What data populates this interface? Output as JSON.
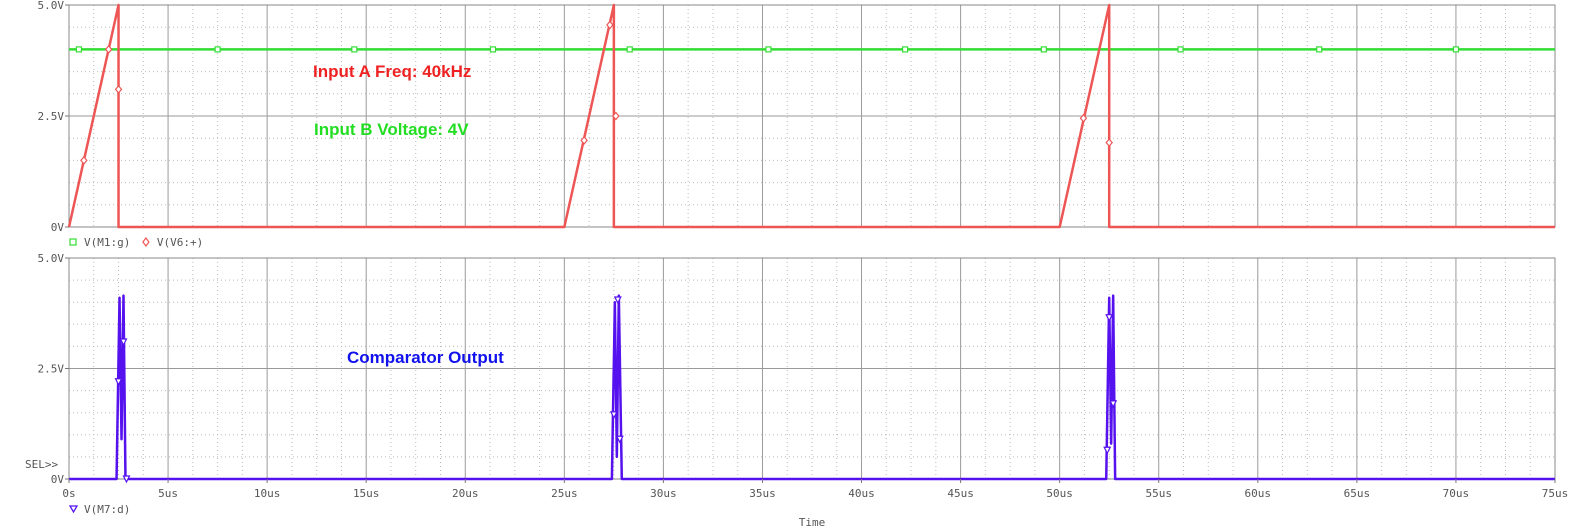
{
  "chart_data": [
    {
      "type": "line",
      "xlim": [
        0,
        75
      ],
      "ylim": [
        0,
        5
      ],
      "y_ticks": [
        {
          "v": 0,
          "label": "0V"
        },
        {
          "v": 2.5,
          "label": "2.5V"
        },
        {
          "v": 5,
          "label": "5.0V"
        }
      ],
      "grid": true,
      "legend": [
        "V(M1:g)",
        "V(V6:+)"
      ],
      "series": [
        {
          "name": "V(M1:g)",
          "color": "#33dd33",
          "marker": "square",
          "points": [
            [
              0,
              4
            ],
            [
              75,
              4
            ]
          ],
          "markers": [
            [
              0.5,
              4
            ],
            [
              7.5,
              4
            ],
            [
              14.4,
              4
            ],
            [
              21.4,
              4
            ],
            [
              28.3,
              4
            ],
            [
              35.3,
              4
            ],
            [
              42.2,
              4
            ],
            [
              49.2,
              4
            ],
            [
              56.1,
              4
            ],
            [
              63.1,
              4
            ],
            [
              70,
              4
            ]
          ]
        },
        {
          "name": "V(V6:+)",
          "color": "#ee5555",
          "marker": "diamond",
          "points": [
            [
              0,
              0
            ],
            [
              2.5,
              5
            ],
            [
              2.5,
              0
            ],
            [
              25,
              0
            ],
            [
              27.5,
              5
            ],
            [
              27.5,
              0
            ],
            [
              50,
              0
            ],
            [
              52.5,
              5
            ],
            [
              52.5,
              0
            ],
            [
              75,
              0
            ]
          ],
          "markers": [
            [
              0.75,
              1.5
            ],
            [
              2,
              4
            ],
            [
              2.5,
              3.1
            ],
            [
              26,
              1.95
            ],
            [
              27.3,
              4.55
            ],
            [
              27.6,
              2.5
            ],
            [
              51.2,
              2.45
            ],
            [
              52.5,
              1.9
            ]
          ]
        }
      ],
      "annotations": [
        {
          "text": "Input A Freq: 40kHz",
          "color": "#ee2222"
        },
        {
          "text": "Input B Voltage: 4V",
          "color": "#22dd22"
        }
      ]
    },
    {
      "type": "line",
      "xlim": [
        0,
        75
      ],
      "ylim": [
        0,
        5
      ],
      "y_ticks": [
        {
          "v": 0,
          "label": "0V"
        },
        {
          "v": 2.5,
          "label": "2.5V"
        },
        {
          "v": 5,
          "label": "5.0V"
        }
      ],
      "x_ticks": [
        "0s",
        "5us",
        "10us",
        "15us",
        "20us",
        "25us",
        "30us",
        "35us",
        "40us",
        "45us",
        "50us",
        "55us",
        "60us",
        "65us",
        "70us",
        "75us"
      ],
      "xlabel": "Time",
      "grid": true,
      "legend": [
        "V(M7:d)"
      ],
      "series": [
        {
          "name": "V(M7:d)",
          "color": "#5511ee",
          "marker": "triangle-down",
          "points": [
            [
              0,
              0
            ],
            [
              2.4,
              0
            ],
            [
              2.55,
              4.1
            ],
            [
              2.65,
              0.9
            ],
            [
              2.75,
              4.15
            ],
            [
              2.85,
              0
            ],
            [
              27.4,
              0
            ],
            [
              27.55,
              4.0
            ],
            [
              27.65,
              0.5
            ],
            [
              27.75,
              4.15
            ],
            [
              27.9,
              0
            ],
            [
              52.35,
              0
            ],
            [
              52.5,
              4.1
            ],
            [
              52.6,
              0.8
            ],
            [
              52.7,
              4.15
            ],
            [
              52.8,
              0
            ],
            [
              75,
              0
            ]
          ],
          "markers": [
            [
              2.5,
              2.2
            ],
            [
              2.75,
              3.1
            ],
            [
              2.9,
              0
            ],
            [
              27.5,
              1.45
            ],
            [
              27.7,
              4.05
            ],
            [
              27.8,
              0.9
            ],
            [
              52.4,
              0.65
            ],
            [
              52.5,
              3.65
            ],
            [
              52.7,
              1.7
            ]
          ]
        }
      ],
      "annotations": [
        {
          "text": "Comparator Output",
          "color": "#1111ee"
        }
      ],
      "sel_marker": "SEL>>"
    }
  ]
}
